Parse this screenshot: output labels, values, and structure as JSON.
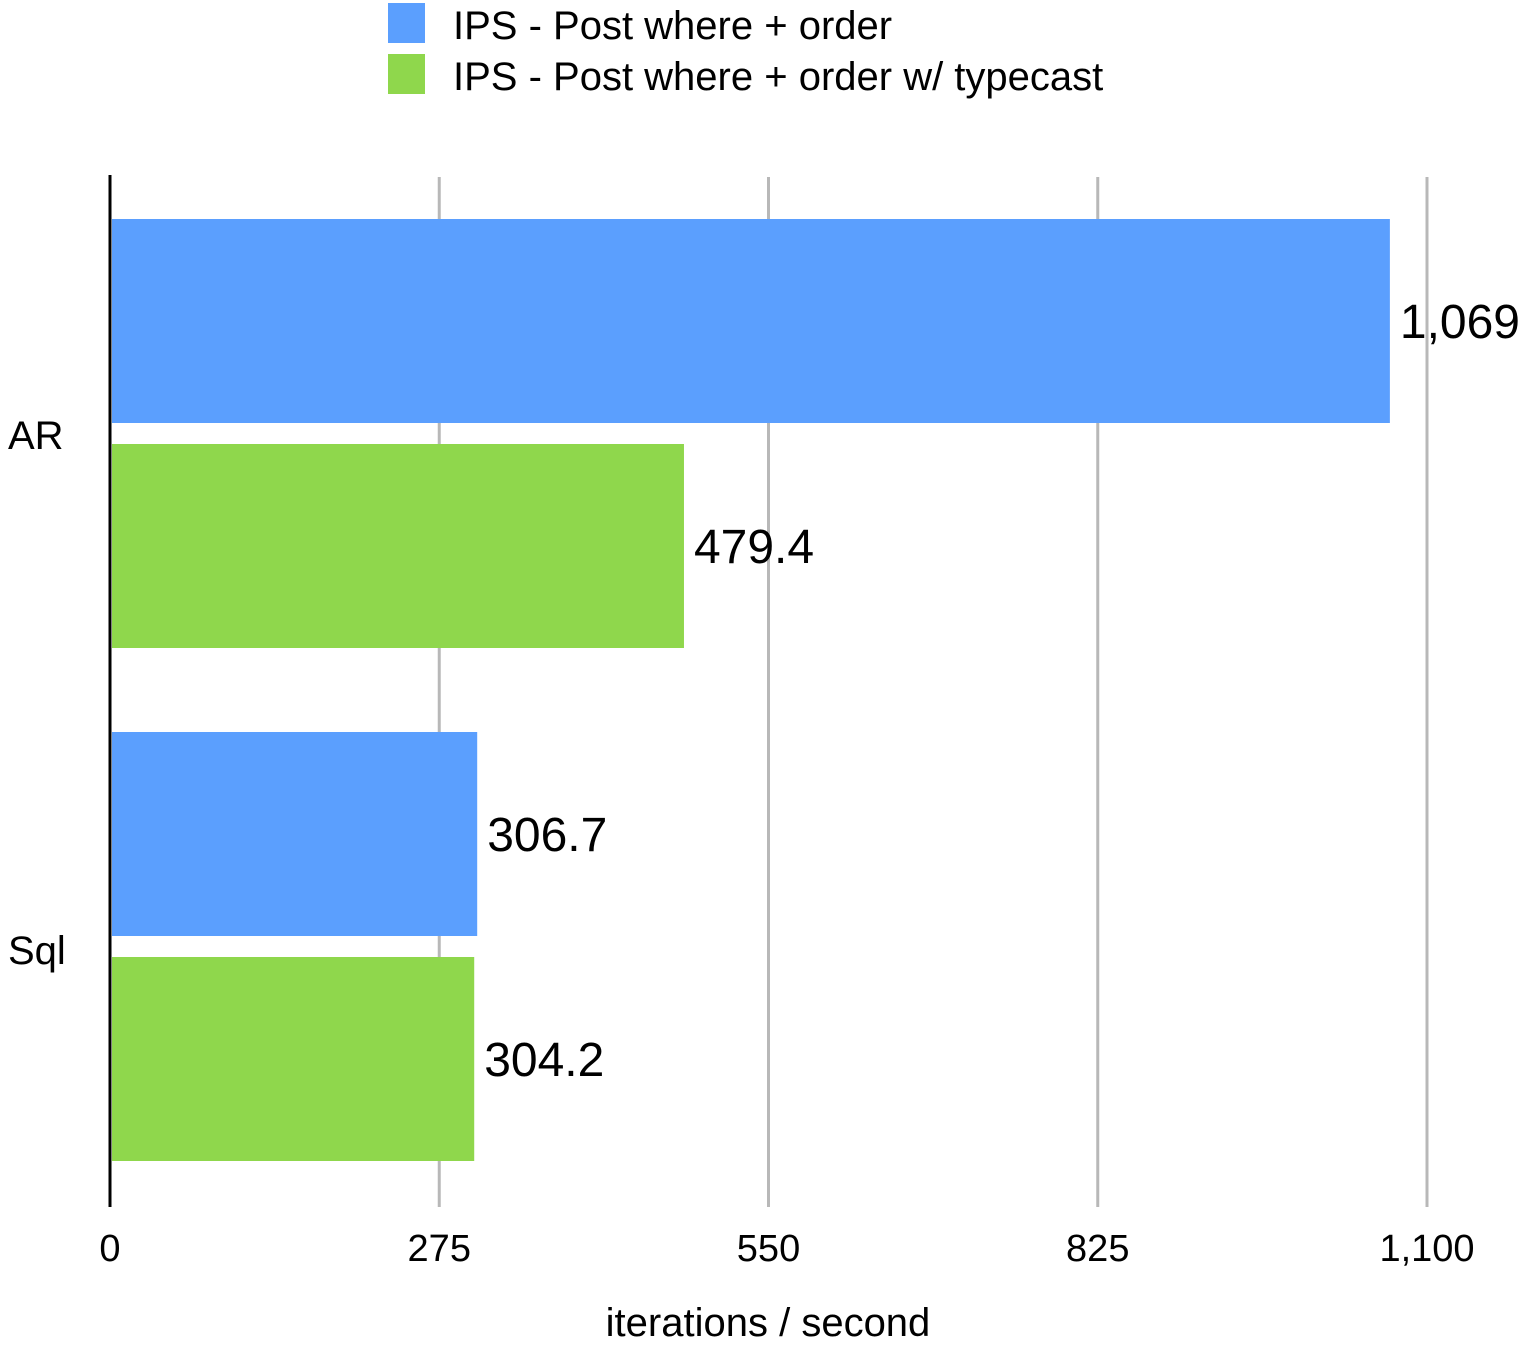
{
  "chart_data": {
    "type": "bar",
    "orientation": "horizontal",
    "title": "",
    "xlabel": "iterations / second",
    "ylabel": "",
    "categories": [
      "AR",
      "Sql"
    ],
    "series": [
      {
        "name": "IPS - Post where + order",
        "color": "#5b9ffe",
        "values": [
          1069,
          306.7
        ],
        "value_labels": [
          "1,069",
          "306.7"
        ]
      },
      {
        "name": "IPS - Post where + order w/ typecast",
        "color": "#8fd74c",
        "values": [
          479.4,
          304.2
        ],
        "value_labels": [
          "479.4",
          "304.2"
        ]
      }
    ],
    "xlim": [
      0,
      1100
    ],
    "xticks": [
      0,
      275,
      550,
      825,
      1100
    ],
    "xtick_labels": [
      "0",
      "275",
      "550",
      "825",
      "1,100"
    ],
    "grid": true,
    "legend_position": "top-center",
    "gridline_color": "#b8b8b8",
    "axis_color": "#000000"
  }
}
